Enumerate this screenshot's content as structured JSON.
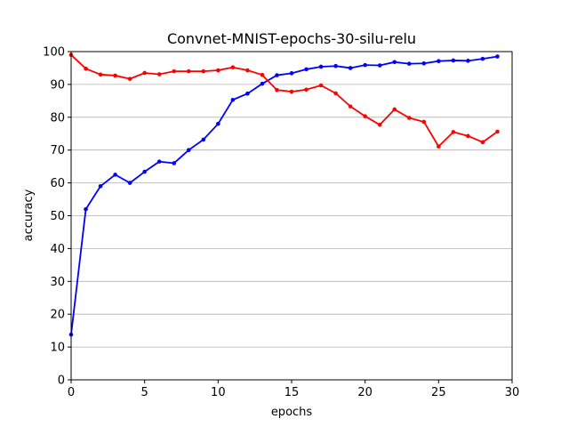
{
  "chart_data": {
    "type": "line",
    "title": "Convnet-MNIST-epochs-30-silu-relu",
    "xlabel": "epochs",
    "ylabel": "accuracy",
    "xlim": [
      0,
      30
    ],
    "ylim": [
      0,
      100
    ],
    "xticks": [
      0,
      5,
      10,
      15,
      20,
      25,
      30
    ],
    "yticks": [
      0,
      10,
      20,
      30,
      40,
      50,
      60,
      70,
      80,
      90,
      100
    ],
    "grid": "y-major",
    "legend": "none",
    "x": [
      0,
      1,
      2,
      3,
      4,
      5,
      6,
      7,
      8,
      9,
      10,
      11,
      12,
      13,
      14,
      15,
      16,
      17,
      18,
      19,
      20,
      21,
      22,
      23,
      24,
      25,
      26,
      27,
      28,
      29
    ],
    "series": [
      {
        "color": "#0000ff",
        "values": [
          13.8,
          52.0,
          59.0,
          62.5,
          60.0,
          63.4,
          66.5,
          66.0,
          70.0,
          73.2,
          78.0,
          85.3,
          87.2,
          90.2,
          92.8,
          93.4,
          94.6,
          95.4,
          95.6,
          95.0,
          95.9,
          95.8,
          96.8,
          96.3,
          96.4,
          97.1,
          97.3,
          97.2,
          97.8,
          98.5
        ]
      },
      {
        "color": "#ff0000",
        "values": [
          99.0,
          94.8,
          93.0,
          92.7,
          91.7,
          93.5,
          93.1,
          94.0,
          94.0,
          94.0,
          94.3,
          95.2,
          94.3,
          92.9,
          88.3,
          87.8,
          88.4,
          89.7,
          87.3,
          83.3,
          80.3,
          77.7,
          82.4,
          79.8,
          78.6,
          71.1,
          75.5,
          74.3,
          72.4,
          75.6
        ]
      }
    ]
  }
}
